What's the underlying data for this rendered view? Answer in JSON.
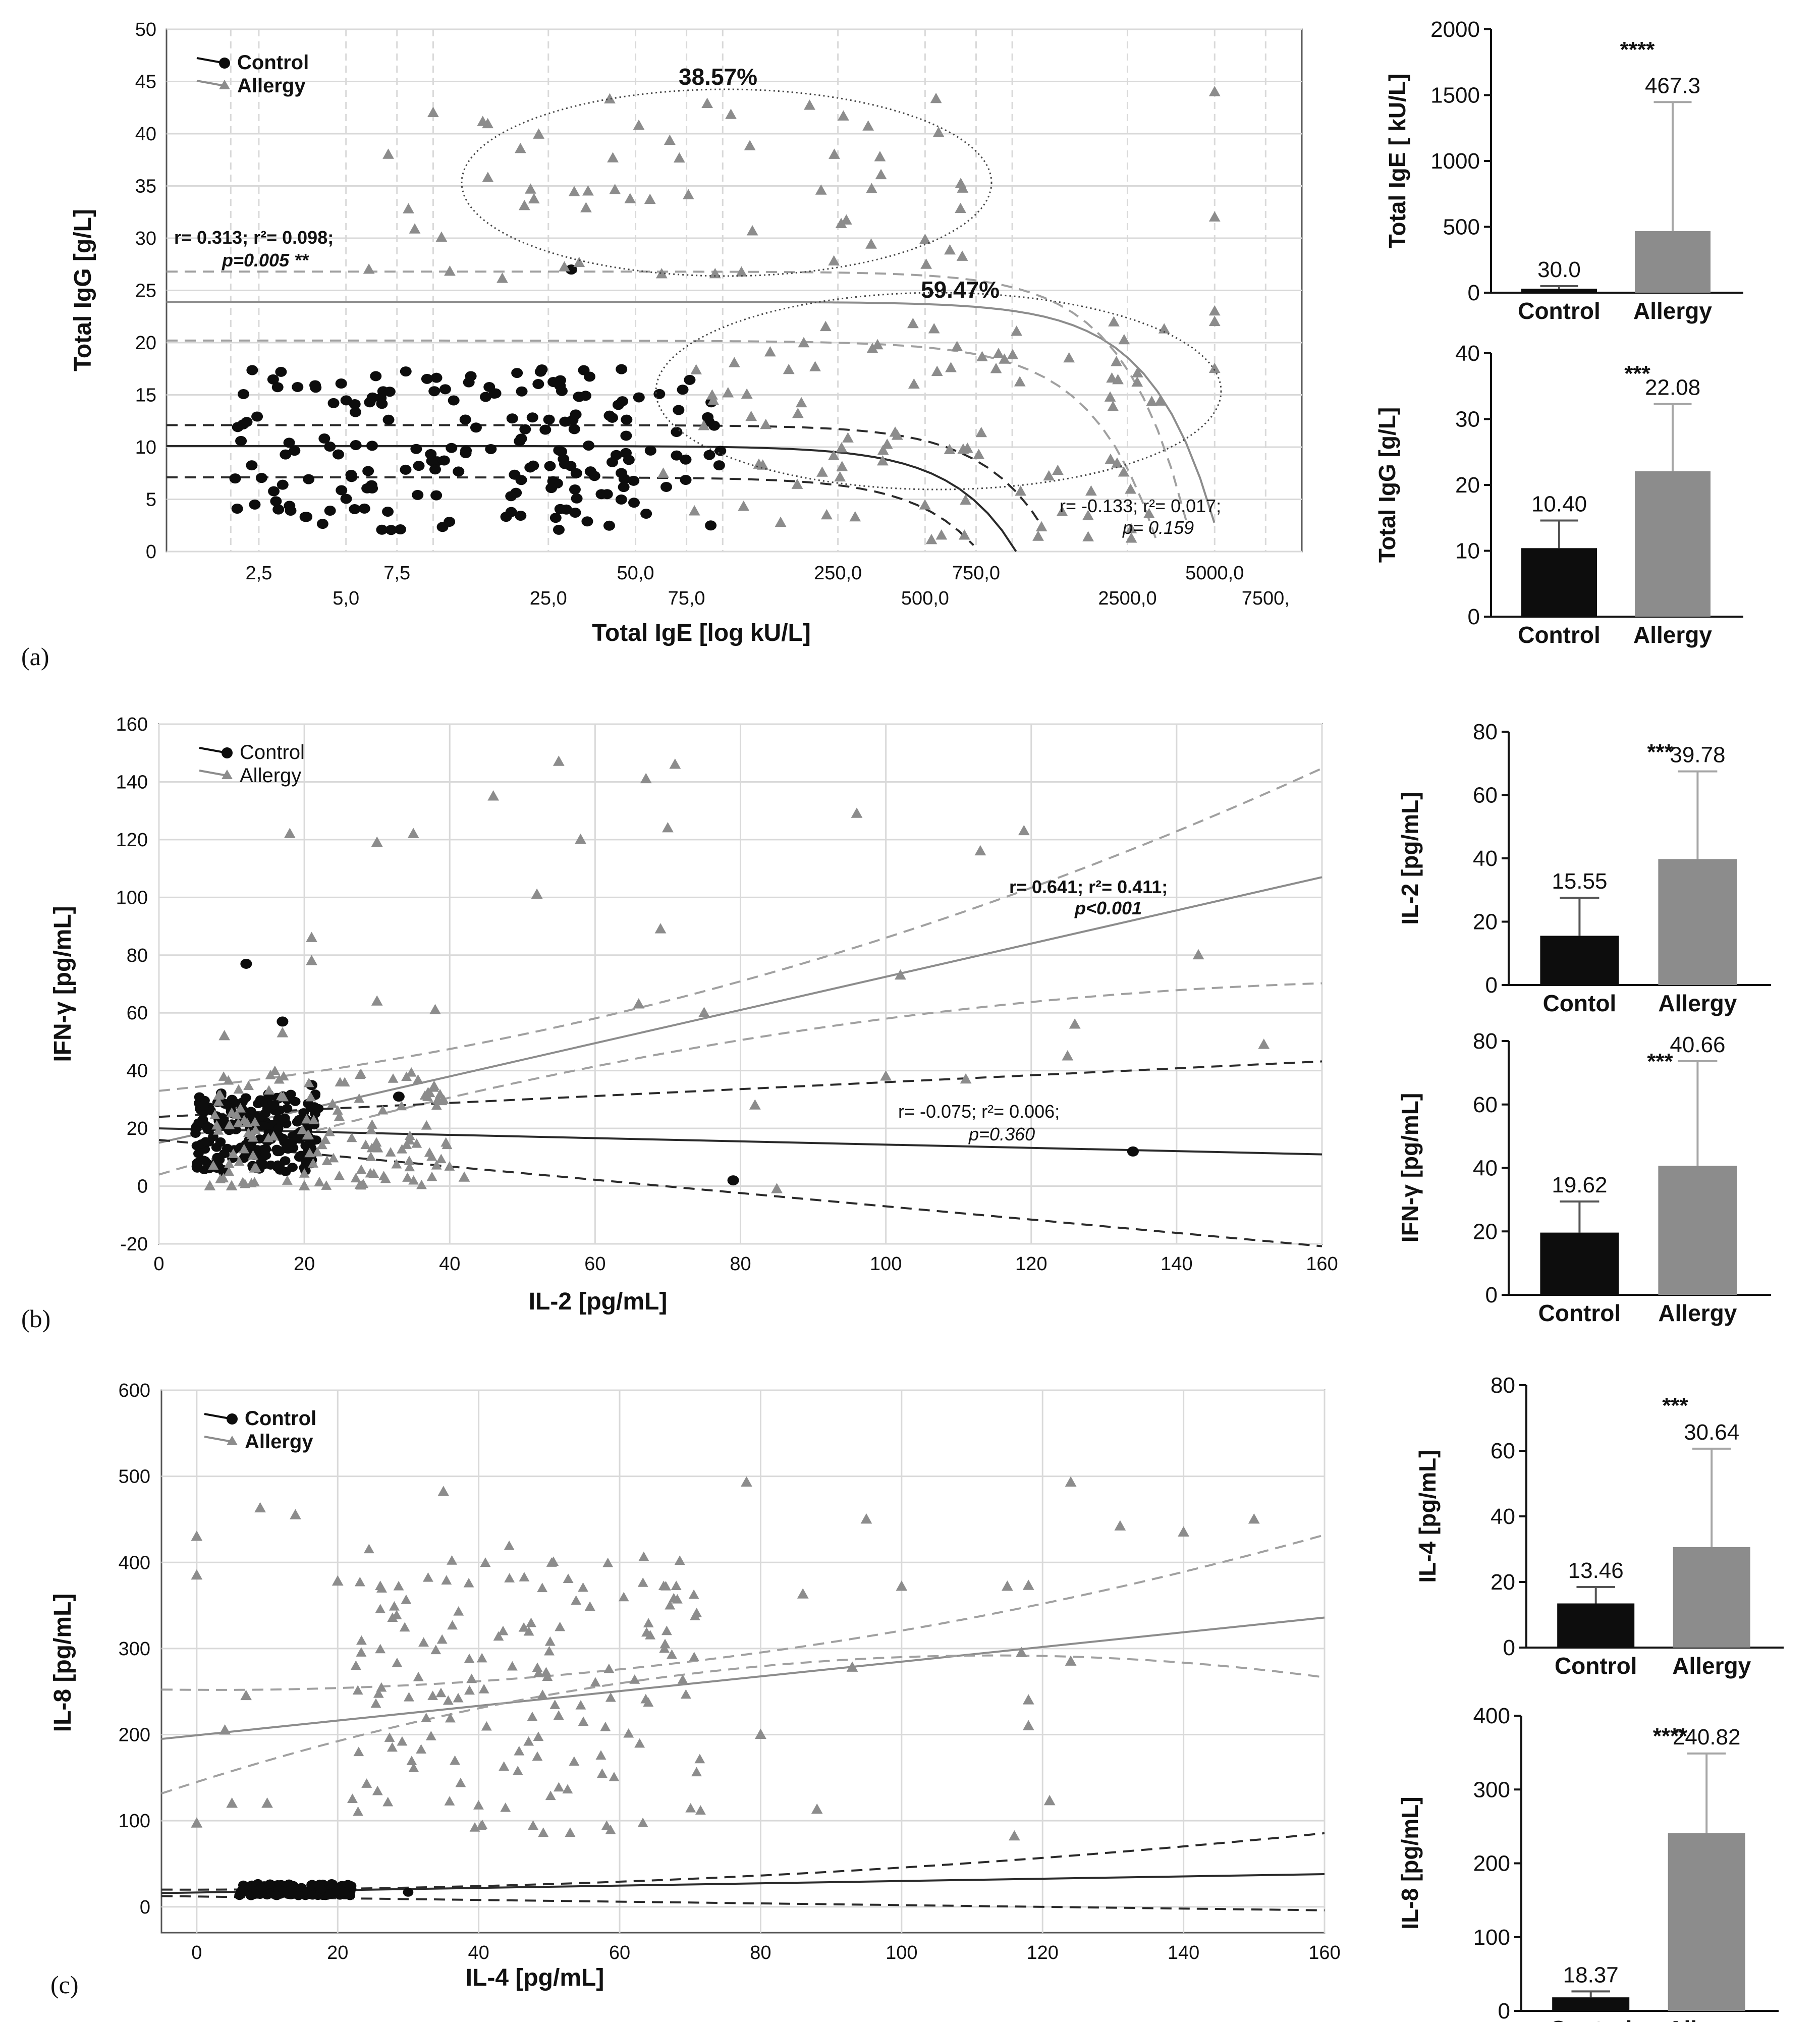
{
  "colors": {
    "control": "#0d0d0d",
    "allergy": "#8c8c8c",
    "grid": "#d9d9d9"
  },
  "panels": [
    "(a)",
    "(b)",
    "(c)"
  ],
  "chart_data": [
    {
      "id": "a",
      "type": "scatter",
      "xlabel": "Total IgE [log kU/L]",
      "ylabel": "Total IgG [g/L]",
      "xscale": "log",
      "xlim": [
        1.2,
        10000
      ],
      "ylim": [
        0,
        50
      ],
      "yticks": [
        "0",
        "5",
        "10",
        "15",
        "20",
        "25",
        "30",
        "35",
        "40",
        "45",
        "50"
      ],
      "xticks_upper": [
        {
          "v": 2.5,
          "label": "2,5"
        },
        {
          "v": 7.5,
          "label": "7,5"
        },
        {
          "v": 50,
          "label": "50,0"
        },
        {
          "v": 250,
          "label": "250,0"
        },
        {
          "v": 750,
          "label": "750,0"
        },
        {
          "v": 5000,
          "label": "5000,0"
        }
      ],
      "xticks_lower": [
        {
          "v": 5,
          "label": "5,0"
        },
        {
          "v": 25,
          "label": "25,0"
        },
        {
          "v": 75,
          "label": "75,0"
        },
        {
          "v": 500,
          "label": "500,0"
        },
        {
          "v": 2500,
          "label": "2500,0"
        },
        {
          "v": 7500,
          "label": "7500,"
        }
      ],
      "legend": [
        "Control",
        "Allergy"
      ],
      "annotations": {
        "allergy_corr_1": "r= 0.313; r²= 0.098;",
        "allergy_corr_2": "p=0.005 **",
        "control_corr_1": "r= -0.133; r²= 0.017;",
        "control_corr_2": "p= 0.159",
        "cluster_high": "38.57%",
        "cluster_mid": "59.47%"
      }
    },
    {
      "id": "b",
      "type": "scatter",
      "xlabel": "IL-2 [pg/mL]",
      "ylabel": "IFN-γ [pg/mL]",
      "xlim": [
        0,
        160
      ],
      "ylim": [
        -20,
        160
      ],
      "xticks": [
        "0",
        "20",
        "40",
        "60",
        "80",
        "100",
        "120",
        "140",
        "160"
      ],
      "yticks": [
        "-20",
        "0",
        "20",
        "40",
        "60",
        "80",
        "100",
        "120",
        "140",
        "160"
      ],
      "legend": [
        "Control",
        "Allergy"
      ],
      "annotations": {
        "allergy_corr_1": "r= 0.641; r²= 0.411;",
        "allergy_corr_2": "p<0.001",
        "control_corr_1": "r= -0.075; r²= 0.006;",
        "control_corr_2": "p=0.360"
      }
    },
    {
      "id": "c",
      "type": "scatter",
      "xlabel": "IL-4 [pg/mL]",
      "ylabel": "IL-8 [pg/mL]",
      "xlim": [
        -5,
        160
      ],
      "ylim": [
        -30,
        600
      ],
      "xticks": [
        "0",
        "20",
        "40",
        "60",
        "80",
        "100",
        "120",
        "140",
        "160"
      ],
      "yticks": [
        "0",
        "100",
        "200",
        "300",
        "400",
        "500",
        "600"
      ],
      "legend": [
        "Control",
        "Allergy"
      ]
    },
    {
      "id": "a-ige",
      "type": "bar",
      "ylabel": "Total IgE [ kU/L]",
      "categories": [
        "Control",
        "Allergy"
      ],
      "values": [
        30.0,
        467.3
      ],
      "errors": [
        20,
        980
      ],
      "value_labels": [
        "30.0",
        "467.3"
      ],
      "ylim": [
        0,
        2000
      ],
      "yticks": [
        "0",
        "500",
        "1000",
        "1500",
        "2000"
      ],
      "significance": "****"
    },
    {
      "id": "a-igg",
      "type": "bar",
      "ylabel": "Total IgG [g/L]",
      "categories": [
        "Control",
        "Allergy"
      ],
      "values": [
        10.4,
        22.08
      ],
      "errors": [
        4.2,
        10.2
      ],
      "value_labels": [
        "10.40",
        "22.08"
      ],
      "ylim": [
        0,
        40
      ],
      "yticks": [
        "0",
        "10",
        "20",
        "30",
        "40"
      ],
      "significance": "***"
    },
    {
      "id": "b-il2",
      "type": "bar",
      "ylabel": "IL-2 [pg/mL]",
      "categories": [
        "Contol",
        "Allergy"
      ],
      "values": [
        15.55,
        39.78
      ],
      "errors": [
        12.0,
        27.7
      ],
      "value_labels": [
        "15.55",
        "39.78"
      ],
      "ylim": [
        0,
        80
      ],
      "yticks": [
        "0",
        "20",
        "40",
        "60",
        "80"
      ],
      "significance": "***"
    },
    {
      "id": "b-ifn",
      "type": "bar",
      "ylabel": "IFN-γ [pg/mL]",
      "categories": [
        "Control",
        "Allergy"
      ],
      "values": [
        19.62,
        40.66
      ],
      "errors": [
        9.8,
        33.0
      ],
      "value_labels": [
        "19.62",
        "40.66"
      ],
      "ylim": [
        0,
        80
      ],
      "yticks": [
        "0",
        "20",
        "40",
        "60",
        "80"
      ],
      "significance": "***"
    },
    {
      "id": "c-il4",
      "type": "bar",
      "ylabel": "IL-4 [pg/mL]",
      "categories": [
        "Control",
        "Allergy"
      ],
      "values": [
        13.46,
        30.64
      ],
      "errors": [
        5.0,
        30.0
      ],
      "value_labels": [
        "13.46",
        "30.64"
      ],
      "ylim": [
        0,
        80
      ],
      "yticks": [
        "0",
        "20",
        "40",
        "60",
        "80"
      ],
      "significance": "***"
    },
    {
      "id": "c-il8",
      "type": "bar",
      "ylabel": "IL-8 [pg/mL]",
      "categories": [
        "Control",
        "Allergy"
      ],
      "values": [
        18.37,
        240.82
      ],
      "errors": [
        8,
        108
      ],
      "value_labels": [
        "18.37",
        "240.82"
      ],
      "ylim": [
        0,
        400
      ],
      "yticks": [
        "0",
        "100",
        "200",
        "300",
        "400"
      ],
      "significance": "****"
    }
  ]
}
